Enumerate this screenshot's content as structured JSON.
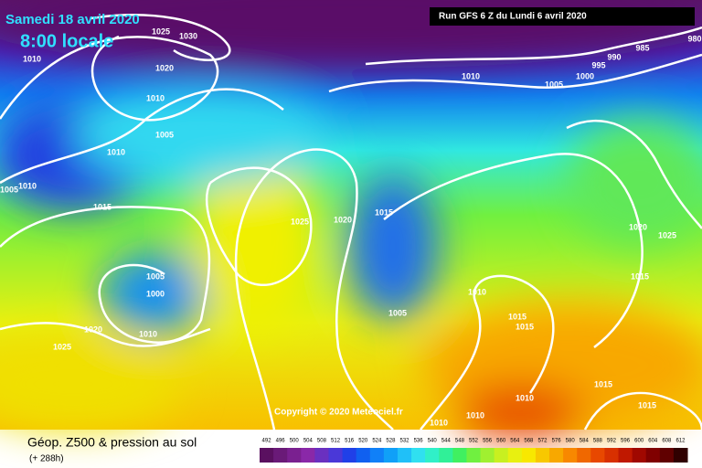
{
  "header": {
    "date": "Samedi 18 avril 2020",
    "time": "8:00 locale",
    "run": "Run GFS 6 Z du Lundi 6 avril 2020"
  },
  "copyright": "Copyright © 2020 Meteociel.fr",
  "footer": {
    "title": "Géop. Z500 & pression au sol",
    "lead": "(+ 288h)"
  },
  "isobar_labels": [
    1025,
    1030,
    1010,
    1020,
    1010,
    1005,
    1010,
    1010,
    1005,
    1015,
    1025,
    1020,
    1015,
    1010,
    1005,
    1000,
    995,
    990,
    985,
    980,
    1005,
    1000,
    1010,
    1020,
    1025,
    1010,
    1005,
    1015,
    1015,
    1015,
    1020,
    1025,
    1015,
    1015,
    1010,
    1010,
    1010
  ],
  "colorbar": {
    "values": [
      492,
      496,
      500,
      504,
      508,
      512,
      516,
      520,
      524,
      528,
      532,
      536,
      540,
      544,
      548,
      552,
      556,
      560,
      564,
      568,
      572,
      576,
      580,
      584,
      588,
      592,
      596,
      600,
      604,
      608,
      612
    ],
    "colors": [
      "#5a1060",
      "#6a1a78",
      "#7a2090",
      "#8a28a8",
      "#6a30c0",
      "#4a38d8",
      "#2040e8",
      "#1060f0",
      "#1080f8",
      "#10a0f8",
      "#20c0f8",
      "#30e0f0",
      "#30f0c8",
      "#30f098",
      "#40f060",
      "#70f040",
      "#a0f030",
      "#c8f020",
      "#e8f010",
      "#f8e800",
      "#f8c800",
      "#f8a800",
      "#f88800",
      "#f06800",
      "#e84800",
      "#d83000",
      "#c01800",
      "#a00800",
      "#800000",
      "#600000",
      "#300000"
    ]
  }
}
